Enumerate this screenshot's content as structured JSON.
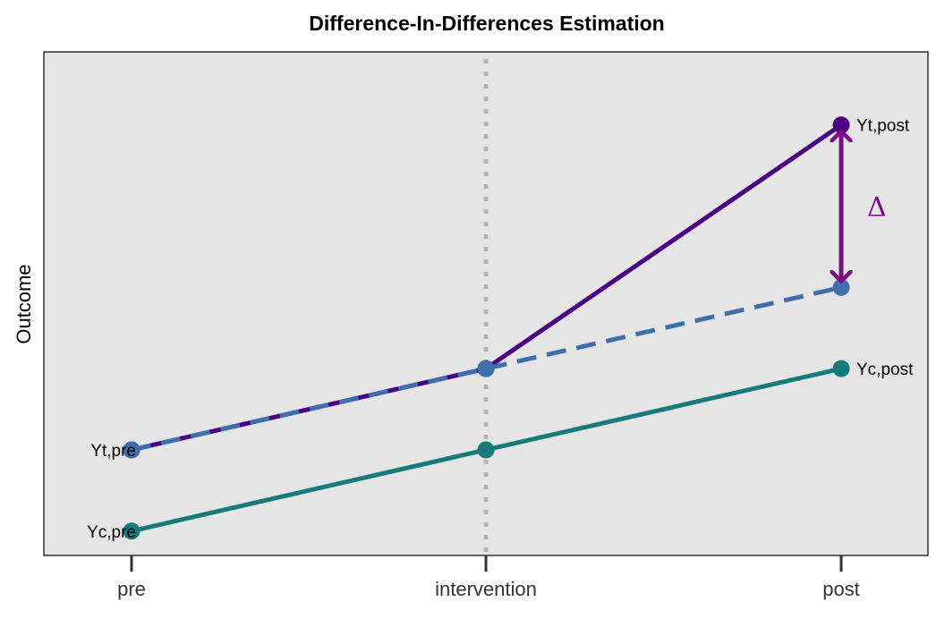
{
  "chart_data": {
    "type": "line",
    "title": "Difference-In-Differences Estimation",
    "xlabel": "",
    "ylabel": "Outcome",
    "categories": [
      "pre",
      "intervention",
      "post"
    ],
    "ylim": [
      0.35,
      3.45
    ],
    "grid": false,
    "series": [
      {
        "key": "treatment",
        "values": [
          1.0,
          1.5,
          3.0
        ],
        "color": "#4b0082",
        "style": "solid"
      },
      {
        "key": "counterfactual",
        "values": [
          1.0,
          1.5,
          2.0
        ],
        "color": "#3f6faa",
        "style": "dashed"
      },
      {
        "key": "control",
        "values": [
          0.5,
          1.0,
          1.5
        ],
        "color": "#177b7b",
        "style": "solid"
      }
    ],
    "vline": {
      "x": "intervention",
      "color": "#b3b3b3",
      "style": "dotted"
    },
    "point_labels": [
      {
        "text": "Yt,post",
        "x": "post",
        "y": 3.0,
        "anchor": "right"
      },
      {
        "text": "Yc,post",
        "x": "post",
        "y": 1.5,
        "anchor": "right"
      },
      {
        "text": "Yt,pre",
        "x": "pre",
        "y": 1.0,
        "anchor": "left"
      },
      {
        "text": "Yc,pre",
        "x": "pre",
        "y": 0.5,
        "anchor": "left"
      }
    ],
    "delta": {
      "text": "Δ",
      "x": "post",
      "y_from": 2.0,
      "y_to": 3.0,
      "color": "#7a0e87"
    },
    "panel_background": "#e5e5e5"
  }
}
